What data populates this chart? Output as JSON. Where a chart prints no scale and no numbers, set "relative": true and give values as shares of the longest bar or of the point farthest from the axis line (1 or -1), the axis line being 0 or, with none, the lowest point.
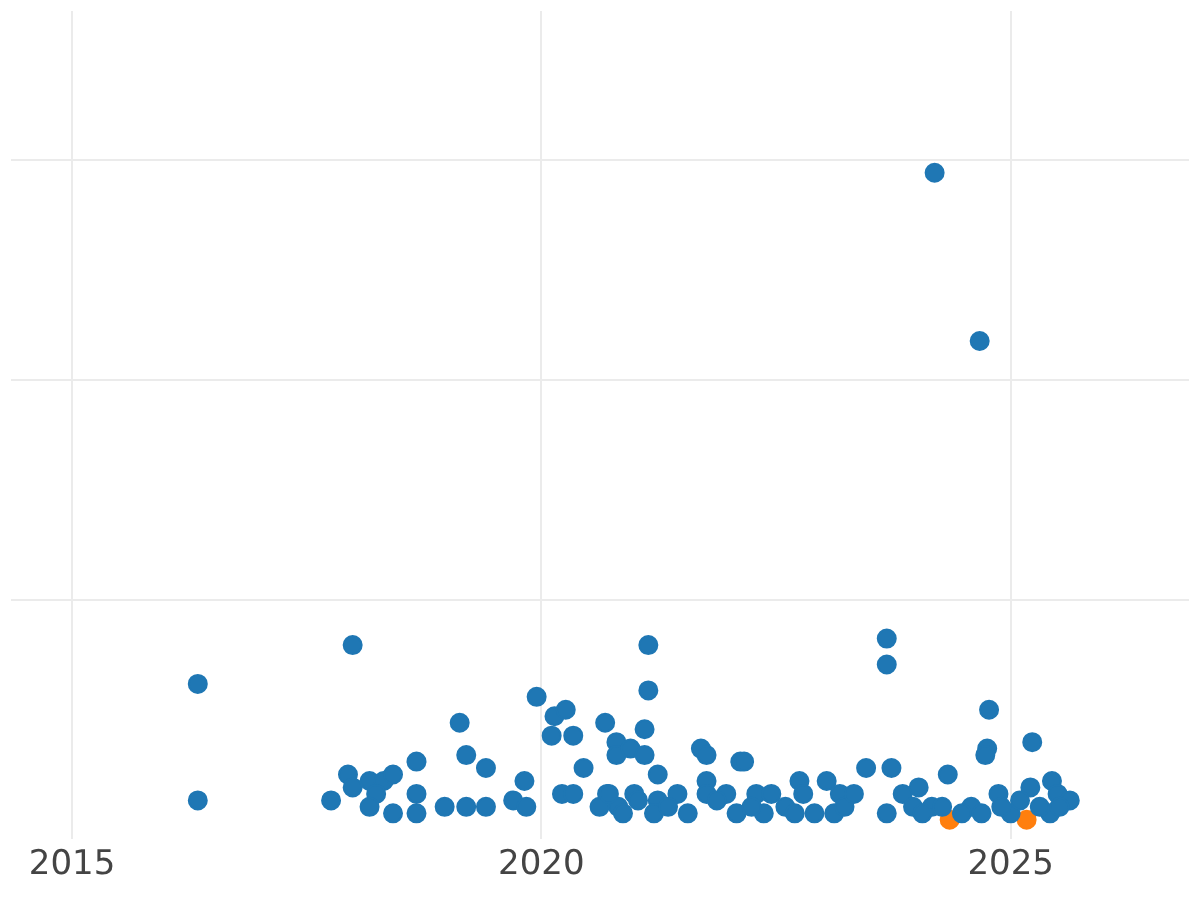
{
  "chart_data": {
    "type": "scatter",
    "relative": true,
    "grid": true,
    "marker": "circle",
    "xlim": [
      2014.35,
      2026.9
    ],
    "xticks": [
      2015,
      2020,
      2025
    ],
    "series": [
      {
        "color": "#1f77b4",
        "x": [
          2016.34,
          2016.34,
          2017.99,
          2017.76,
          2017.94,
          2017.99,
          2018.17,
          2018.32,
          2018.24,
          2018.42,
          2018.17,
          2018.42,
          2018.67,
          2018.67,
          2018.67,
          2018.97,
          2019.13,
          2019.2,
          2019.41,
          2019.2,
          2019.41,
          2019.7,
          2019.82,
          2019.95,
          2019.84,
          2020.14,
          2020.26,
          2020.11,
          2020.34,
          2020.45,
          2020.22,
          2020.34,
          2020.68,
          2020.8,
          2020.8,
          2020.95,
          2021.1,
          2021.14,
          2021.14,
          2021.1,
          2021.24,
          2020.7,
          2020.82,
          2020.99,
          2021.24,
          2021.45,
          2021.7,
          2021.76,
          2021.76,
          2021.76,
          2021.97,
          2022.12,
          2022.16,
          2022.08,
          2022.29,
          2022.37,
          2022.75,
          2022.79,
          2022.91,
          2023.04,
          2023.18,
          2023.46,
          2023.68,
          2023.68,
          2023.73,
          2023.68,
          2023.85,
          2024.02,
          2024.16,
          2024.19,
          2024.33,
          2024.67,
          2024.77,
          2024.75,
          2024.73,
          2024.58,
          2024.87,
          2025.0,
          2025.21,
          2025.23,
          2025.44,
          2025.5,
          2025.42,
          2025.63,
          2020.62,
          2020.72,
          2020.87,
          2021.03,
          2021.2,
          2021.35,
          2021.56,
          2021.87,
          2022.24,
          2022.45,
          2022.6,
          2022.7,
          2023.12,
          2023.23,
          2023.33,
          2023.96,
          2024.06,
          2024.27,
          2024.48,
          2024.69,
          2024.9,
          2025.1,
          2025.31,
          2025.52
        ],
        "values": [
          0.21,
          0.03,
          0.27,
          0.03,
          0.07,
          0.05,
          0.06,
          0.06,
          0.04,
          0.07,
          0.02,
          0.01,
          0.09,
          0.04,
          0.01,
          0.02,
          0.15,
          0.1,
          0.08,
          0.02,
          0.02,
          0.03,
          0.06,
          0.19,
          0.02,
          0.16,
          0.17,
          0.13,
          0.13,
          0.08,
          0.04,
          0.04,
          0.15,
          0.12,
          0.1,
          0.11,
          0.14,
          0.27,
          0.2,
          0.1,
          0.07,
          0.04,
          0.02,
          0.04,
          0.03,
          0.04,
          0.11,
          0.1,
          0.06,
          0.04,
          0.04,
          0.09,
          0.09,
          0.01,
          0.04,
          0.01,
          0.06,
          0.04,
          0.01,
          0.06,
          0.04,
          0.08,
          0.28,
          0.24,
          0.08,
          0.01,
          0.04,
          0.05,
          0.02,
          1,
          0.07,
          0.74,
          0.17,
          0.11,
          0.1,
          0.02,
          0.04,
          0.01,
          0.05,
          0.12,
          0.06,
          0.04,
          0.01,
          0.03,
          0.02,
          0.04,
          0.01,
          0.03,
          0.01,
          0.02,
          0.01,
          0.03,
          0.02,
          0.04,
          0.02,
          0.01,
          0.01,
          0.02,
          0.04,
          0.02,
          0.01,
          0.02,
          0.01,
          0.01,
          0.02,
          0.03,
          0.02,
          0.02
        ]
      },
      {
        "color": "#ff7f0e",
        "x": [
          2024.35,
          2025.17
        ],
        "values": [
          0,
          0
        ]
      }
    ]
  }
}
